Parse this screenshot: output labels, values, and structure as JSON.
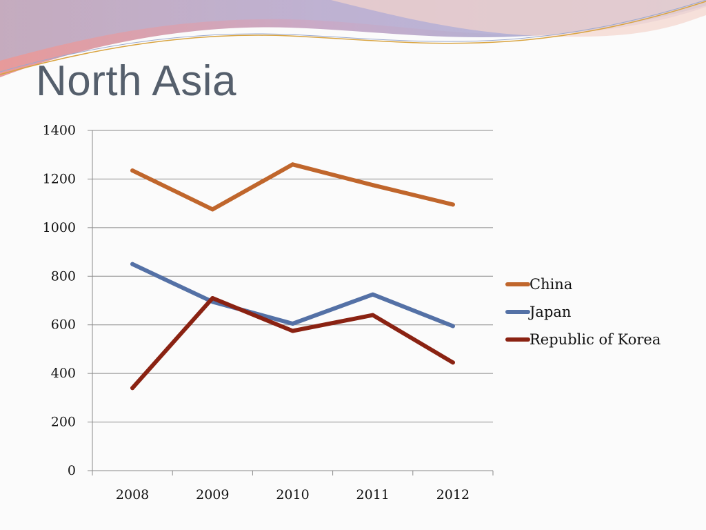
{
  "slide": {
    "title": "North Asia"
  },
  "colors": {
    "title": "#555f6c",
    "grid": "#8a8a8a",
    "axis": "#8a8a8a"
  },
  "chart_data": {
    "type": "line",
    "title": "",
    "xlabel": "",
    "ylabel": "",
    "categories": [
      "2008",
      "2009",
      "2010",
      "2011",
      "2012"
    ],
    "ylim": [
      0,
      1400
    ],
    "yticks": [
      0,
      200,
      400,
      600,
      800,
      1000,
      1200,
      1400
    ],
    "ytick_labels": [
      "0",
      "200",
      "400",
      "600",
      "800",
      "1000",
      "1200",
      "1400"
    ],
    "grid": true,
    "legend_position": "right",
    "series": [
      {
        "name": "China",
        "color": "#c0662c",
        "values": [
          1235,
          1075,
          1260,
          1175,
          1095
        ]
      },
      {
        "name": "Japan",
        "color": "#5471a6",
        "values": [
          850,
          695,
          605,
          725,
          595
        ]
      },
      {
        "name": "Republic of Korea",
        "color": "#8a2212",
        "values": [
          340,
          710,
          575,
          640,
          445
        ]
      }
    ]
  }
}
